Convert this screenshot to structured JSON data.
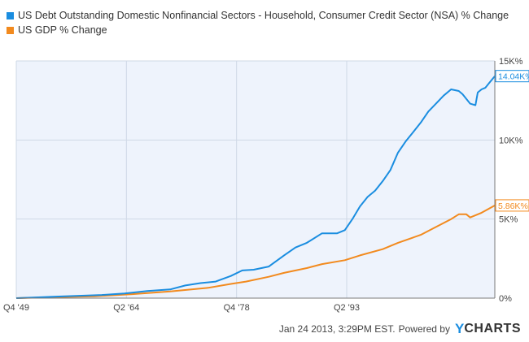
{
  "legend": {
    "items": [
      {
        "label": "US Debt Outstanding Domestic Nonfinancial Sectors - Household, Consumer Credit Sector (NSA) % Change",
        "color": "#1a8de0"
      },
      {
        "label": "US GDP % Change",
        "color": "#f28a1e"
      }
    ]
  },
  "footer": {
    "timestamp": "Jan 24 2013, 3:29PM EST.",
    "powered_by": "Powered by",
    "brand_y": "Y",
    "brand_rest": "CHARTS"
  },
  "chart_data": {
    "type": "line",
    "title": "",
    "xlabel": "",
    "ylabel": "",
    "x_range": [
      1949.75,
      2012.75
    ],
    "ylim": [
      0,
      15000
    ],
    "y_ticks": [
      {
        "value": 0,
        "label": "0%"
      },
      {
        "value": 5000,
        "label": "5K%"
      },
      {
        "value": 10000,
        "label": "10K%"
      },
      {
        "value": 15000,
        "label": "15K%"
      }
    ],
    "x_ticks": [
      {
        "value": 1949.75,
        "label": "Q4  '49"
      },
      {
        "value": 1964.25,
        "label": "Q2  '64"
      },
      {
        "value": 1978.75,
        "label": "Q4  '78"
      },
      {
        "value": 1993.25,
        "label": "Q2  '93"
      }
    ],
    "grid": true,
    "legend_position": "top-left",
    "series": [
      {
        "name": "US Debt Outstanding Domestic Nonfinancial Sectors - Household, Consumer Credit Sector (NSA) % Change",
        "color": "#1a8de0",
        "end_label": "14.04K%",
        "x": [
          1949.75,
          1952,
          1955,
          1958,
          1961,
          1964,
          1967,
          1970,
          1972,
          1974,
          1976,
          1978,
          1979.5,
          1981,
          1983,
          1985,
          1986.5,
          1988,
          1990,
          1992,
          1993,
          1994,
          1995,
          1996,
          1997,
          1998,
          1999,
          2000,
          2001,
          2002,
          2003,
          2004,
          2005,
          2006,
          2007,
          2008,
          2008.5,
          2009.5,
          2010.2,
          2010.5,
          2011,
          2011.5,
          2012,
          2012.75
        ],
        "y": [
          0,
          40,
          100,
          150,
          200,
          300,
          450,
          550,
          800,
          950,
          1050,
          1400,
          1750,
          1800,
          2000,
          2700,
          3200,
          3500,
          4100,
          4100,
          4300,
          5000,
          5800,
          6400,
          6800,
          7400,
          8100,
          9200,
          9900,
          10500,
          11100,
          11800,
          12300,
          12800,
          13200,
          13100,
          12900,
          12300,
          12200,
          13000,
          13200,
          13300,
          13600,
          14040
        ]
      },
      {
        "name": "US GDP % Change",
        "color": "#f28a1e",
        "end_label": "5.86K%",
        "x": [
          1949.75,
          1955,
          1960,
          1965,
          1970,
          1975,
          1978,
          1980,
          1983,
          1985,
          1988,
          1990,
          1993,
          1995,
          1998,
          2000,
          2003,
          2005,
          2007,
          2008,
          2009,
          2009.5,
          2011,
          2012.75
        ],
        "y": [
          0,
          60,
          120,
          250,
          420,
          650,
          900,
          1050,
          1350,
          1600,
          1900,
          2150,
          2400,
          2700,
          3100,
          3500,
          4000,
          4500,
          5000,
          5300,
          5300,
          5100,
          5400,
          5860
        ]
      }
    ]
  }
}
